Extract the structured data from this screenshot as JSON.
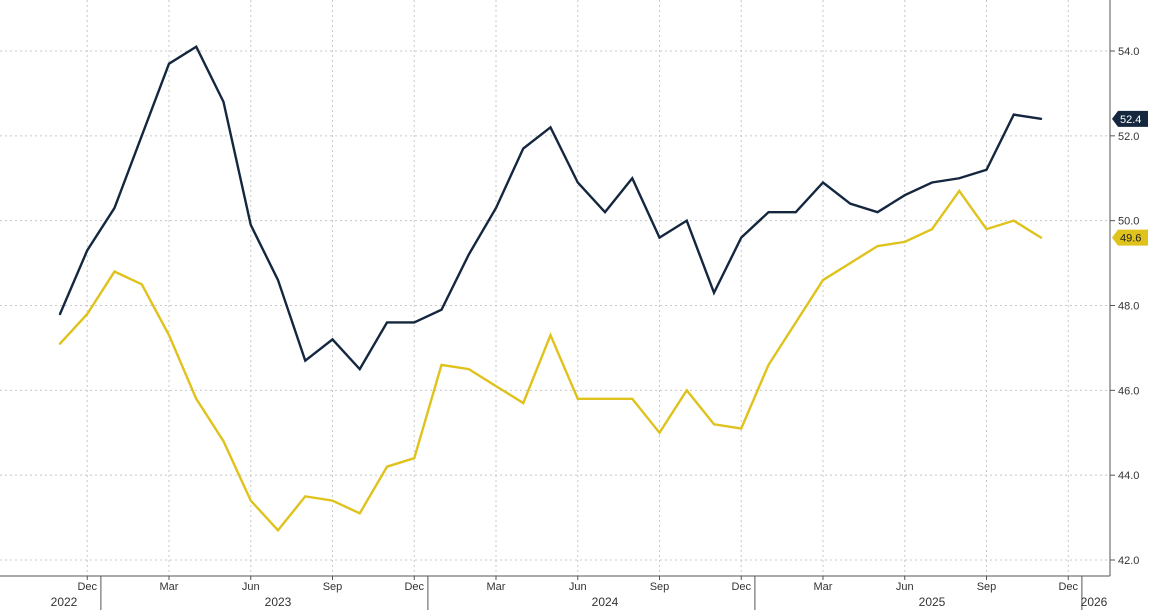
{
  "chart_data": {
    "type": "line",
    "title": "",
    "xlabel": "",
    "ylabel": "",
    "ylim": [
      41.8,
      55.0
    ],
    "y_axis_side": "right",
    "grid": true,
    "y_ticks": [
      "42.0",
      "44.0",
      "46.0",
      "48.0",
      "50.0",
      "52.0",
      "54.0"
    ],
    "x_month_ticks": [
      {
        "label": "Dec",
        "date": "2022-12"
      },
      {
        "label": "Mar",
        "date": "2023-03"
      },
      {
        "label": "Jun",
        "date": "2023-06"
      },
      {
        "label": "Sep",
        "date": "2023-09"
      },
      {
        "label": "Dec",
        "date": "2023-12"
      },
      {
        "label": "Mar",
        "date": "2024-03"
      },
      {
        "label": "Jun",
        "date": "2024-06"
      },
      {
        "label": "Sep",
        "date": "2024-09"
      },
      {
        "label": "Dec",
        "date": "2024-12"
      },
      {
        "label": "Mar",
        "date": "2025-03"
      },
      {
        "label": "Jun",
        "date": "2025-06"
      },
      {
        "label": "Sep",
        "date": "2025-09"
      },
      {
        "label": "Dec",
        "date": "2025-12"
      }
    ],
    "x_year_labels": [
      {
        "label": "2022",
        "date": "2022-11"
      },
      {
        "label": "2023",
        "date": "2023-07"
      },
      {
        "label": "2024",
        "date": "2024-07"
      },
      {
        "label": "2025",
        "date": "2025-07"
      },
      {
        "label": "2026",
        "date": "2026-01"
      }
    ],
    "x": [
      "2022-11",
      "2022-12",
      "2023-01",
      "2023-02",
      "2023-03",
      "2023-04",
      "2023-05",
      "2023-06",
      "2023-07",
      "2023-08",
      "2023-09",
      "2023-10",
      "2023-11",
      "2023-12",
      "2024-01",
      "2024-02",
      "2024-03",
      "2024-04",
      "2024-05",
      "2024-06",
      "2024-07",
      "2024-08",
      "2024-09",
      "2024-10",
      "2024-11",
      "2024-12",
      "2025-01",
      "2025-02",
      "2025-03",
      "2025-04",
      "2025-05",
      "2025-06",
      "2025-07",
      "2025-08",
      "2025-09",
      "2025-10",
      "2025-11"
    ],
    "series": [
      {
        "color": "#14273f",
        "end_label": "52.4",
        "values": [
          47.8,
          49.3,
          50.3,
          52.0,
          53.7,
          54.1,
          52.8,
          49.9,
          48.6,
          46.7,
          47.2,
          46.5,
          47.6,
          47.6,
          47.9,
          49.2,
          50.3,
          51.7,
          52.2,
          50.9,
          50.2,
          51.0,
          49.6,
          50.0,
          48.3,
          49.6,
          50.2,
          50.2,
          50.9,
          50.4,
          50.2,
          50.6,
          50.9,
          51.0,
          51.2,
          52.5,
          52.4
        ]
      },
      {
        "color": "#e0c21c",
        "end_label": "49.6",
        "values": [
          47.1,
          47.8,
          48.8,
          48.5,
          47.3,
          45.8,
          44.8,
          43.4,
          42.7,
          43.5,
          43.4,
          43.1,
          44.2,
          44.4,
          46.6,
          46.5,
          46.1,
          45.7,
          47.3,
          45.8,
          45.8,
          45.8,
          45.0,
          46.0,
          45.2,
          45.1,
          46.6,
          47.6,
          48.6,
          49.0,
          49.4,
          49.5,
          49.8,
          50.7,
          49.8,
          50.0,
          49.6
        ]
      }
    ]
  }
}
